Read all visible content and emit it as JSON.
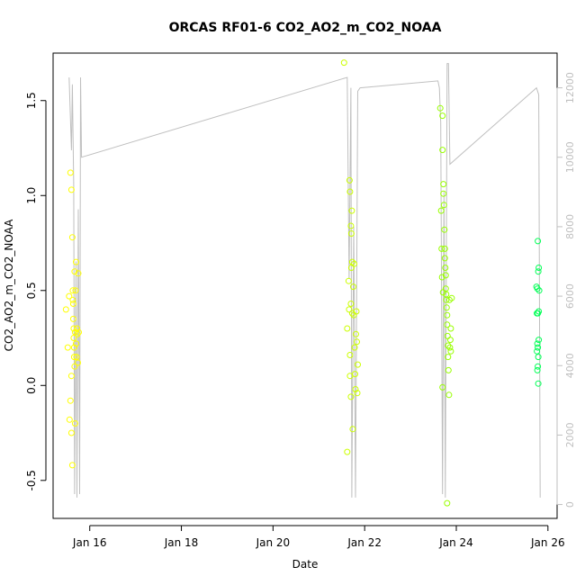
{
  "chart_data": {
    "type": "scatter",
    "title": "ORCAS RF01-6 CO2_AO2_m_CO2_NOAA",
    "xlabel": "Date",
    "ylabel": "CO2_AO2_m_CO2_NOAA",
    "x_tick_labels": [
      "Jan 16",
      "Jan 18",
      "Jan 20",
      "Jan 22",
      "Jan 24",
      "Jan 26"
    ],
    "x_tick_values": [
      16,
      18,
      20,
      22,
      24,
      26
    ],
    "xlim": [
      15.2,
      26.2
    ],
    "y_tick_labels": [
      "-0.5",
      "0.0",
      "0.5",
      "1.0",
      "1.5"
    ],
    "y_tick_values": [
      -0.5,
      0.0,
      0.5,
      1.0,
      1.5
    ],
    "ylim": [
      -0.7,
      1.75
    ],
    "y2_tick_labels": [
      "0",
      "2000",
      "4000",
      "6000",
      "8000",
      "10000",
      "12000"
    ],
    "y2_tick_values": [
      0,
      2000,
      4000,
      6000,
      8000,
      10000,
      12000
    ],
    "y2lim": [
      -400,
      13000
    ],
    "grid": false,
    "colors": {
      "altitude_line": "#bfbfbf",
      "axis": "#000000",
      "right_axis": "#bfbfbf",
      "flight_colors": [
        "#ffff00",
        "#ccff00",
        "#99ff00",
        "#66ff00",
        "#00ff55"
      ]
    },
    "altitude_series": {
      "name": "",
      "points": [
        [
          15.55,
          12300
        ],
        [
          15.6,
          10200
        ],
        [
          15.62,
          12100
        ],
        [
          15.65,
          9200
        ],
        [
          15.67,
          300
        ],
        [
          15.7,
          7000
        ],
        [
          15.72,
          200
        ],
        [
          15.75,
          8500
        ],
        [
          15.78,
          300
        ],
        [
          15.8,
          12300
        ],
        [
          15.82,
          10000
        ],
        [
          21.62,
          12300
        ],
        [
          21.66,
          6500
        ],
        [
          21.7,
          12000
        ],
        [
          21.72,
          200
        ],
        [
          21.76,
          8000
        ],
        [
          21.8,
          200
        ],
        [
          21.85,
          11900
        ],
        [
          21.9,
          12000
        ],
        [
          23.6,
          12200
        ],
        [
          23.63,
          12000
        ],
        [
          23.66,
          11000
        ],
        [
          23.7,
          300
        ],
        [
          23.73,
          9000
        ],
        [
          23.76,
          200
        ],
        [
          23.8,
          12700
        ],
        [
          23.83,
          12700
        ],
        [
          23.86,
          9800
        ],
        [
          25.75,
          12000
        ],
        [
          25.8,
          11800
        ],
        [
          25.83,
          200
        ]
      ]
    },
    "series": [
      {
        "name": "",
        "color": "#ffff00",
        "points": [
          [
            15.48,
            0.4
          ],
          [
            15.52,
            0.2
          ],
          [
            15.55,
            0.47
          ],
          [
            15.58,
            1.12
          ],
          [
            15.6,
            1.03
          ],
          [
            15.6,
            -0.25
          ],
          [
            15.62,
            -0.42
          ],
          [
            15.62,
            0.78
          ],
          [
            15.63,
            0.5
          ],
          [
            15.63,
            0.45
          ],
          [
            15.64,
            0.43
          ],
          [
            15.64,
            0.35
          ],
          [
            15.65,
            0.3
          ],
          [
            15.65,
            0.25
          ],
          [
            15.66,
            0.2
          ],
          [
            15.66,
            0.15
          ],
          [
            15.67,
            0.6
          ],
          [
            15.67,
            0.1
          ],
          [
            15.68,
            -0.2
          ],
          [
            15.68,
            0.28
          ],
          [
            15.69,
            0.5
          ],
          [
            15.7,
            0.65
          ],
          [
            15.7,
            0.22
          ],
          [
            15.71,
            0.15
          ],
          [
            15.72,
            0.3
          ],
          [
            15.73,
            0.27
          ],
          [
            15.74,
            0.12
          ],
          [
            15.75,
            0.59
          ],
          [
            15.76,
            0.28
          ],
          [
            15.56,
            -0.18
          ],
          [
            15.58,
            -0.08
          ],
          [
            15.6,
            0.05
          ]
        ]
      },
      {
        "name": "",
        "color": "#ccff00",
        "points": [
          [
            21.55,
            1.7
          ],
          [
            21.62,
            0.3
          ],
          [
            21.62,
            -0.35
          ],
          [
            21.65,
            0.55
          ],
          [
            21.66,
            0.4
          ],
          [
            21.67,
            1.08
          ],
          [
            21.68,
            1.02
          ],
          [
            21.68,
            0.16
          ],
          [
            21.7,
            0.43
          ],
          [
            21.7,
            0.84
          ],
          [
            21.71,
            0.8
          ],
          [
            21.72,
            0.92
          ],
          [
            21.73,
            0.65
          ],
          [
            21.73,
            0.38
          ],
          [
            21.74,
            -0.23
          ],
          [
            21.75,
            0.52
          ],
          [
            21.76,
            0.37
          ],
          [
            21.77,
            0.64
          ],
          [
            21.78,
            0.2
          ],
          [
            21.79,
            0.06
          ],
          [
            21.8,
            -0.02
          ],
          [
            21.81,
            0.27
          ],
          [
            21.82,
            0.39
          ],
          [
            21.83,
            0.23
          ],
          [
            21.84,
            -0.04
          ],
          [
            21.85,
            0.11
          ],
          [
            21.68,
            0.05
          ],
          [
            21.7,
            -0.06
          ],
          [
            21.71,
            0.62
          ]
        ]
      },
      {
        "name": "",
        "color": "#99ff00",
        "points": [
          [
            23.65,
            1.46
          ],
          [
            23.7,
            1.42
          ],
          [
            23.7,
            1.24
          ],
          [
            23.72,
            1.06
          ],
          [
            23.72,
            1.01
          ],
          [
            23.73,
            0.95
          ],
          [
            23.74,
            0.82
          ],
          [
            23.75,
            0.72
          ],
          [
            23.75,
            0.67
          ],
          [
            23.76,
            0.62
          ],
          [
            23.77,
            0.58
          ],
          [
            23.77,
            0.51
          ],
          [
            23.78,
            0.48
          ],
          [
            23.78,
            0.45
          ],
          [
            23.79,
            0.41
          ],
          [
            23.8,
            0.37
          ],
          [
            23.8,
            0.32
          ],
          [
            23.81,
            0.26
          ],
          [
            23.82,
            0.21
          ],
          [
            23.82,
            0.15
          ],
          [
            23.83,
            0.08
          ],
          [
            23.84,
            -0.05
          ],
          [
            23.85,
            0.45
          ],
          [
            23.86,
            0.2
          ],
          [
            23.87,
            0.24
          ],
          [
            23.88,
            0.18
          ],
          [
            23.8,
            -0.62
          ],
          [
            23.7,
            -0.01
          ],
          [
            23.88,
            0.3
          ],
          [
            23.9,
            0.46
          ],
          [
            23.67,
            0.92
          ],
          [
            23.68,
            0.72
          ],
          [
            23.69,
            0.57
          ],
          [
            23.71,
            0.49
          ]
        ]
      },
      {
        "name": "",
        "color": "#00ff55",
        "points": [
          [
            25.75,
            0.52
          ],
          [
            25.77,
            0.51
          ],
          [
            25.78,
            0.76
          ],
          [
            25.79,
            0.6
          ],
          [
            25.8,
            0.62
          ],
          [
            25.81,
            0.5
          ],
          [
            25.76,
            0.38
          ],
          [
            25.78,
            0.38
          ],
          [
            25.8,
            0.39
          ],
          [
            25.77,
            0.22
          ],
          [
            25.78,
            0.2
          ],
          [
            25.8,
            0.24
          ],
          [
            25.79,
            0.15
          ],
          [
            25.78,
            0.1
          ],
          [
            25.77,
            0.08
          ],
          [
            25.79,
            0.01
          ],
          [
            25.76,
            0.18
          ]
        ]
      }
    ]
  }
}
